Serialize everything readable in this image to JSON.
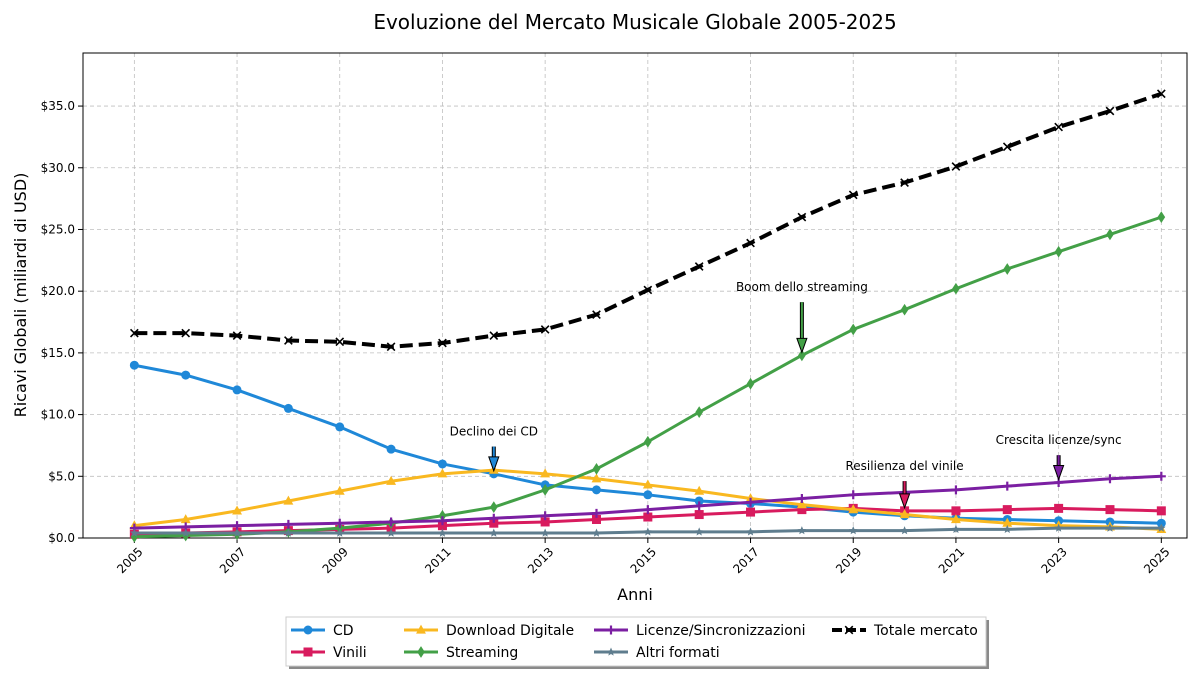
{
  "chart_data": {
    "type": "line",
    "title": "Evoluzione del Mercato Musicale Globale 2005-2025",
    "xlabel": "Anni",
    "ylabel": "Ricavi Globali (miliardi di USD)",
    "xlim": [
      2004,
      2025.5
    ],
    "ylim": [
      0,
      39.3
    ],
    "x": [
      2005,
      2006,
      2007,
      2008,
      2009,
      2010,
      2011,
      2012,
      2013,
      2014,
      2015,
      2016,
      2017,
      2018,
      2019,
      2020,
      2021,
      2022,
      2023,
      2024,
      2025
    ],
    "x_ticks": [
      2005,
      2007,
      2009,
      2011,
      2013,
      2015,
      2017,
      2019,
      2021,
      2023,
      2025
    ],
    "x_tick_labels": [
      "2005",
      "2007",
      "2009",
      "2011",
      "2013",
      "2015",
      "2017",
      "2019",
      "2021",
      "2023",
      "2025"
    ],
    "y_ticks": [
      0,
      5,
      10,
      15,
      20,
      25,
      30,
      35
    ],
    "y_tick_labels": [
      "$0.0",
      "$5.0",
      "$10.0",
      "$15.0",
      "$20.0",
      "$25.0",
      "$30.0",
      "$35.0"
    ],
    "grid": true,
    "legend_position": "bottom-center",
    "series": [
      {
        "name": "CD",
        "color": "#1f88d8",
        "marker": "circle",
        "dashed": false,
        "values": [
          14.0,
          13.2,
          12.0,
          10.5,
          9.0,
          7.2,
          6.0,
          5.2,
          4.3,
          3.9,
          3.5,
          3.0,
          2.8,
          2.5,
          2.1,
          1.8,
          1.6,
          1.5,
          1.4,
          1.3,
          1.2
        ]
      },
      {
        "name": "Vinili",
        "color": "#d81b5e",
        "marker": "square",
        "dashed": false,
        "values": [
          0.3,
          0.4,
          0.5,
          0.6,
          0.7,
          0.8,
          1.0,
          1.2,
          1.3,
          1.5,
          1.7,
          1.9,
          2.1,
          2.3,
          2.4,
          2.2,
          2.2,
          2.3,
          2.4,
          2.3,
          2.2
        ]
      },
      {
        "name": "Download Digitale",
        "color": "#f9b820",
        "marker": "triangle",
        "dashed": false,
        "values": [
          1.0,
          1.5,
          2.2,
          3.0,
          3.8,
          4.6,
          5.2,
          5.5,
          5.2,
          4.8,
          4.3,
          3.8,
          3.2,
          2.7,
          2.3,
          1.9,
          1.5,
          1.2,
          1.0,
          0.9,
          0.7
        ]
      },
      {
        "name": "Streaming",
        "color": "#43a047",
        "marker": "diamond",
        "dashed": false,
        "values": [
          0.1,
          0.2,
          0.3,
          0.5,
          0.8,
          1.2,
          1.8,
          2.5,
          3.9,
          5.6,
          7.8,
          10.2,
          12.5,
          14.8,
          16.9,
          18.5,
          20.2,
          21.8,
          23.2,
          24.6,
          26.0
        ]
      },
      {
        "name": "Licenze/Sincronizzazioni",
        "color": "#7b1fa2",
        "marker": "plus",
        "dashed": false,
        "values": [
          0.8,
          0.9,
          1.0,
          1.1,
          1.2,
          1.3,
          1.4,
          1.6,
          1.8,
          2.0,
          2.3,
          2.6,
          2.9,
          3.2,
          3.5,
          3.7,
          3.9,
          4.2,
          4.5,
          4.8,
          5.0
        ]
      },
      {
        "name": "Altri formati",
        "color": "#5f7d8e",
        "marker": "star",
        "dashed": false,
        "values": [
          0.4,
          0.4,
          0.4,
          0.4,
          0.4,
          0.4,
          0.4,
          0.4,
          0.4,
          0.4,
          0.5,
          0.5,
          0.5,
          0.6,
          0.6,
          0.6,
          0.7,
          0.7,
          0.8,
          0.8,
          0.8
        ]
      },
      {
        "name": "Totale mercato",
        "color": "#000000",
        "marker": "x",
        "dashed": true,
        "values": [
          16.6,
          16.6,
          16.4,
          16.0,
          15.9,
          15.5,
          15.8,
          16.4,
          16.9,
          18.1,
          20.1,
          22.0,
          23.9,
          26.0,
          27.8,
          28.8,
          30.1,
          31.7,
          33.3,
          34.6,
          36.0
        ]
      }
    ],
    "annotations": [
      {
        "text": "Declino dei CD",
        "x": 2012,
        "y": 5.2,
        "text_y": 8.3,
        "color": "#1f88d8"
      },
      {
        "text": "Boom dello streaming",
        "x": 2018,
        "y": 14.8,
        "text_y": 20.0,
        "color": "#43a047"
      },
      {
        "text": "Resilienza del vinile",
        "x": 2020,
        "y": 2.2,
        "text_y": 5.5,
        "color": "#d81b5e"
      },
      {
        "text": "Crescita licenze/sync",
        "x": 2023,
        "y": 4.5,
        "text_y": 7.6,
        "color": "#7b1fa2"
      }
    ]
  }
}
